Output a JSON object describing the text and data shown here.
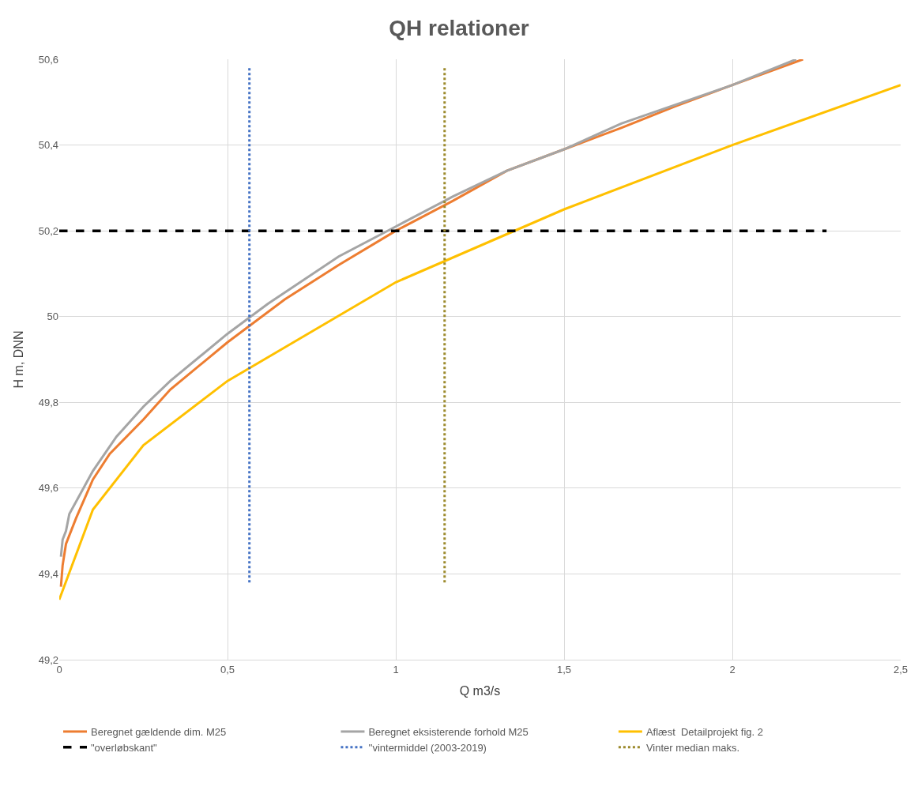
{
  "chart_data": {
    "type": "line",
    "title": "QH relationer",
    "xlabel": "Q m3/s",
    "ylabel": "H m, DNN",
    "xlim": [
      0,
      2.5
    ],
    "ylim": [
      49.2,
      50.6
    ],
    "xticks": [
      0,
      {
        "value": 0.5,
        "label": "0,5"
      },
      1,
      {
        "value": 1.5,
        "label": "1,5"
      },
      2,
      {
        "value": 2.5,
        "label": "2,5"
      }
    ],
    "yticks": [
      {
        "value": 49.2,
        "label": "49,2"
      },
      {
        "value": 49.4,
        "label": "49,4"
      },
      {
        "value": 49.6,
        "label": "49,6"
      },
      {
        "value": 49.8,
        "label": "49,8"
      },
      50,
      {
        "value": 50.2,
        "label": "50,2"
      },
      {
        "value": 50.4,
        "label": "50,4"
      },
      {
        "value": 50.6,
        "label": "50,6"
      }
    ],
    "grid": true,
    "legend": "bottom",
    "marker": "none",
    "series": [
      {
        "name": "Beregnet gældende dim. M25",
        "color": "#ed7d31",
        "line_style": "solid",
        "x": [
          0.005,
          0.01,
          0.02,
          0.05,
          0.1,
          0.15,
          0.25,
          0.33,
          0.5,
          0.67,
          0.83,
          1,
          1.17,
          1.33,
          1.5,
          1.67,
          1.83,
          2,
          2.21
        ],
        "values": [
          49.37,
          49.42,
          49.47,
          49.53,
          49.62,
          49.68,
          49.76,
          49.83,
          49.94,
          50.04,
          50.12,
          50.2,
          50.27,
          50.34,
          50.39,
          50.44,
          50.49,
          50.54,
          50.6
        ]
      },
      {
        "name": "Beregnet eksisterende forhold M25",
        "color": "#a5a5a5",
        "line_style": "solid",
        "x": [
          0.005,
          0.01,
          0.02,
          0.03,
          0.1,
          0.17,
          0.25,
          0.33,
          0.5,
          0.62,
          0.83,
          1,
          1.17,
          1.33,
          1.5,
          1.67,
          2,
          2.19
        ],
        "values": [
          49.44,
          49.48,
          49.5,
          49.54,
          49.64,
          49.72,
          49.79,
          49.85,
          49.96,
          50.03,
          50.14,
          50.21,
          50.28,
          50.34,
          50.39,
          50.45,
          50.54,
          50.6
        ]
      },
      {
        "name": "Aflæst  Detailprojekt fig. 2",
        "color": "#ffc000",
        "line_style": "solid",
        "x": [
          0,
          0.1,
          0.25,
          0.5,
          1,
          1.5,
          2,
          2.5
        ],
        "values": [
          49.34,
          49.55,
          49.7,
          49.85,
          50.08,
          50.25,
          50.4,
          50.54
        ]
      },
      {
        "name": "\"overløbskant\"",
        "color": "#000000",
        "line_style": "dashed",
        "x": [
          0,
          2.28
        ],
        "values": [
          50.2,
          50.2
        ]
      },
      {
        "name": "''vintermiddel (2003-2019)",
        "color": "#4472c4",
        "line_style": "dotted",
        "x": [
          0.565,
          0.565
        ],
        "values": [
          49.38,
          50.58
        ]
      },
      {
        "name": "Vinter median maks.",
        "color": "#9c8a2c",
        "line_style": "dotted",
        "x": [
          1.145,
          1.145
        ],
        "values": [
          49.38,
          50.58
        ]
      }
    ]
  }
}
